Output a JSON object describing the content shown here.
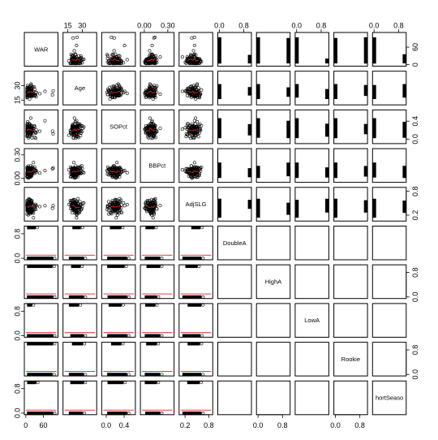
{
  "chart_data": {
    "type": "scatter",
    "title": "",
    "layout": "scatterplot-matrix",
    "grid": false,
    "smoother_color": "#dd2222",
    "point_color": "#000000",
    "variables": [
      "WAR",
      "Age",
      "SOPct",
      "BBPct",
      "AdjSLG",
      "DoubleA",
      "HighA",
      "LowA",
      "Rookie",
      "ShortSeason"
    ],
    "variable_labels": [
      "WAR",
      "Age",
      "SOPct",
      "BBPct",
      "AdjSLG",
      "DoubleA",
      "HighA",
      "LowA",
      "Rookie",
      "hortSeaso"
    ],
    "ranges": {
      "WAR": [
        -5,
        110
      ],
      "Age": [
        10,
        45
      ],
      "SOPct": [
        -0.1,
        0.65
      ],
      "BBPct": [
        -0.05,
        0.38
      ],
      "AdjSLG": [
        0.05,
        0.9
      ],
      "DoubleA": [
        -0.05,
        1.05
      ],
      "HighA": [
        -0.05,
        1.05
      ],
      "LowA": [
        -0.05,
        1.05
      ],
      "Rookie": [
        -0.05,
        1.05
      ],
      "ShortSeason": [
        -0.05,
        1.05
      ]
    },
    "axis_ticks": {
      "top": [
        {
          "col": 1,
          "labels": [
            "15",
            "30"
          ],
          "values": [
            15,
            30
          ]
        },
        {
          "col": 3,
          "labels": [
            "0.00",
            "0.30"
          ],
          "values": [
            0.0,
            0.3
          ]
        },
        {
          "col": 5,
          "labels": [
            "0.0",
            "0.8"
          ],
          "values": [
            0.0,
            0.8
          ]
        },
        {
          "col": 7,
          "labels": [
            "0.0",
            "0.8"
          ],
          "values": [
            0.0,
            0.8
          ]
        },
        {
          "col": 9,
          "labels": [
            "0.0",
            "0.8"
          ],
          "values": [
            0.0,
            0.8
          ]
        }
      ],
      "bottom": [
        {
          "col": 0,
          "labels": [
            "0",
            "60"
          ],
          "values": [
            0,
            60
          ]
        },
        {
          "col": 2,
          "labels": [
            "0.0",
            "0.4"
          ],
          "values": [
            0.0,
            0.4
          ]
        },
        {
          "col": 4,
          "labels": [
            "0.2",
            "0.8"
          ],
          "values": [
            0.2,
            0.8
          ]
        },
        {
          "col": 6,
          "labels": [
            "0.0",
            "0.8"
          ],
          "values": [
            0.0,
            0.8
          ]
        },
        {
          "col": 8,
          "labels": [
            "0.0",
            "0.8"
          ],
          "values": [
            0.0,
            0.8
          ]
        }
      ],
      "left": [
        {
          "row": 1,
          "labels": [
            "15",
            "30"
          ],
          "values": [
            15,
            30
          ]
        },
        {
          "row": 3,
          "labels": [
            "0.00",
            "0.30"
          ],
          "values": [
            0.0,
            0.3
          ]
        },
        {
          "row": 5,
          "labels": [
            "0.0",
            "0.8"
          ],
          "values": [
            0.0,
            0.8
          ]
        },
        {
          "row": 7,
          "labels": [
            "0.0",
            "0.8"
          ],
          "values": [
            0.0,
            0.8
          ]
        },
        {
          "row": 9,
          "labels": [
            "0.0",
            "0.8"
          ],
          "values": [
            0.0,
            0.8
          ]
        }
      ],
      "right": [
        {
          "row": 0,
          "labels": [
            "0",
            "60"
          ],
          "values": [
            0,
            60
          ]
        },
        {
          "row": 2,
          "labels": [
            "0.0",
            "0.4"
          ],
          "values": [
            0.0,
            0.4
          ]
        },
        {
          "row": 4,
          "labels": [
            "0.2",
            "0.8"
          ],
          "values": [
            0.2,
            0.8
          ]
        },
        {
          "row": 6,
          "labels": [
            "0.0",
            "0.8"
          ],
          "values": [
            0.0,
            0.8
          ]
        },
        {
          "row": 8,
          "labels": [
            "0.0",
            "0.8"
          ],
          "values": [
            0.0,
            0.8
          ]
        }
      ]
    },
    "distributions": {
      "WAR": {
        "type": "skewed",
        "center": 12,
        "spread": 12,
        "max": 100
      },
      "Age": {
        "type": "normal",
        "center": 23,
        "spread": 3
      },
      "SOPct": {
        "type": "normal",
        "center": 0.2,
        "spread": 0.07
      },
      "BBPct": {
        "type": "normal",
        "center": 0.09,
        "spread": 0.035
      },
      "AdjSLG": {
        "type": "normal",
        "center": 0.4,
        "spread": 0.08
      },
      "DoubleA": {
        "type": "binary"
      },
      "HighA": {
        "type": "binary"
      },
      "LowA": {
        "type": "binary"
      },
      "Rookie": {
        "type": "binary"
      },
      "ShortSeason": {
        "type": "binary"
      }
    }
  }
}
